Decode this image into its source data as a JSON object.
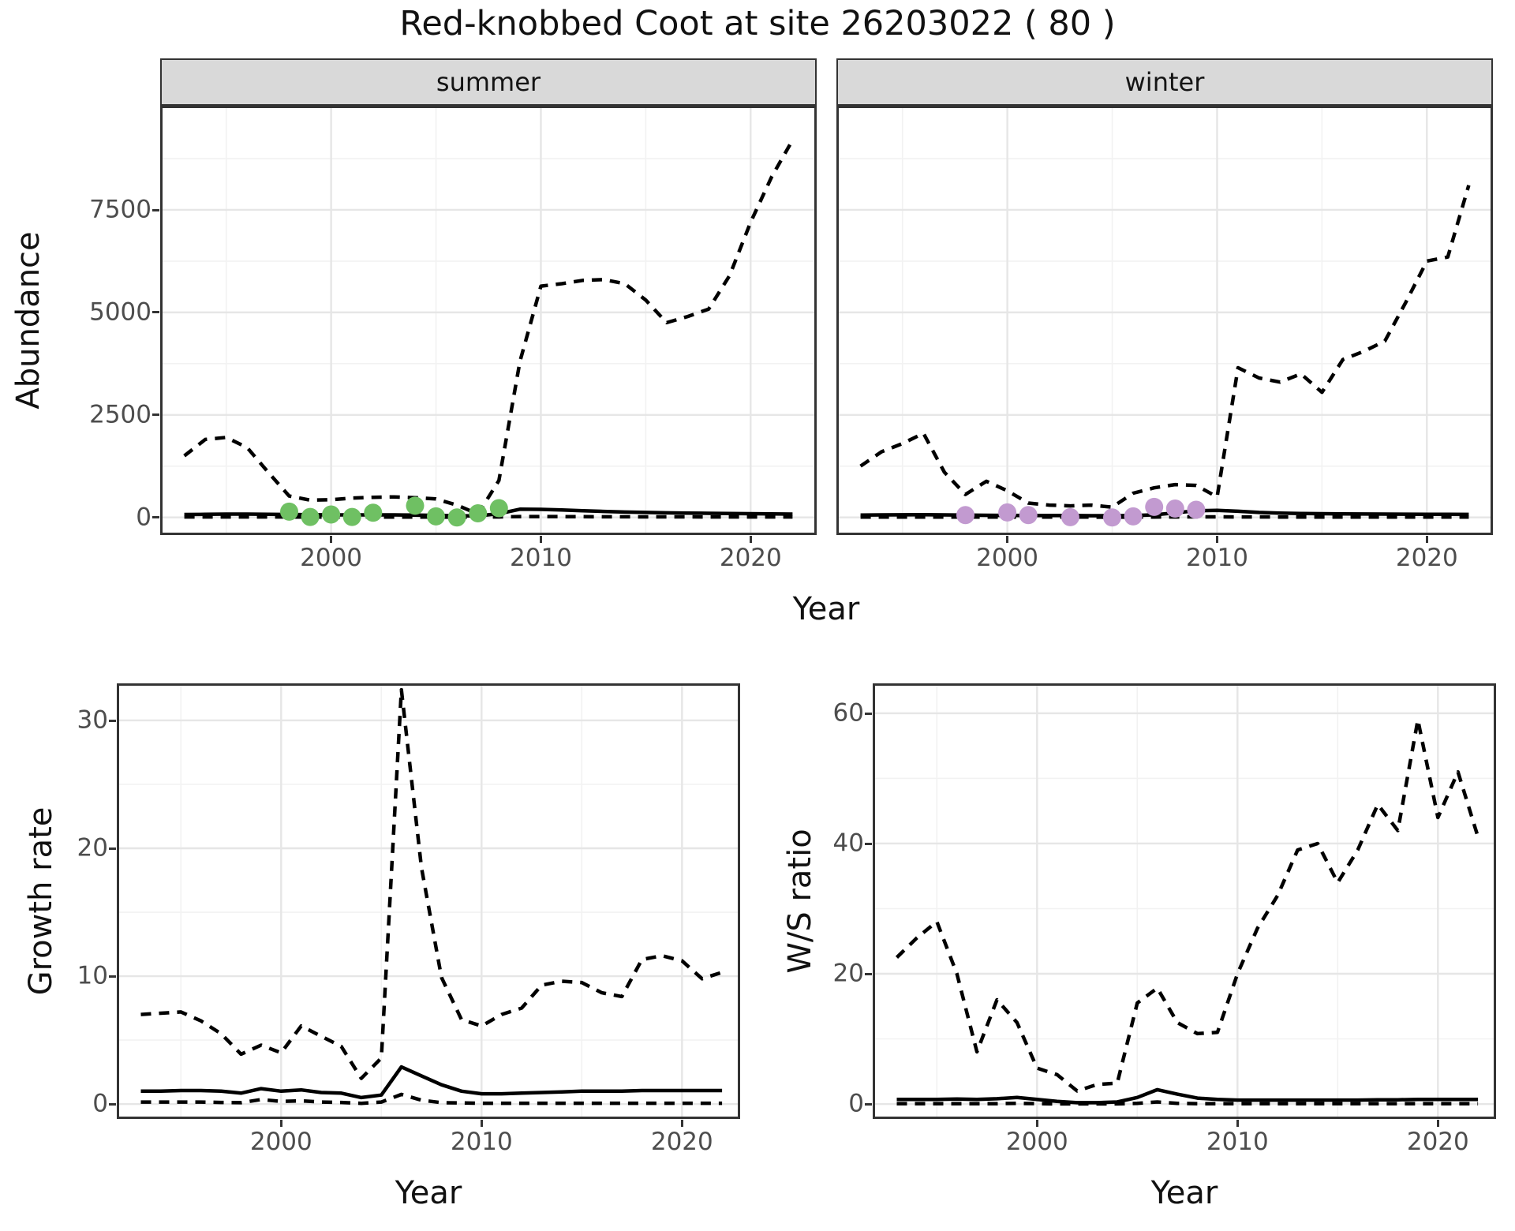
{
  "title": "Red-knobbed Coot at site 26203022 ( 80 )",
  "colors": {
    "summer_points": "#6fc063",
    "winter_points": "#c29ad0",
    "line": "#000000",
    "strip_bg": "#d9d9d9",
    "panel_border": "#333333",
    "grid_major": "#e6e6e6",
    "grid_minor": "#f2f2f2",
    "tick_text": "#4d4d4d"
  },
  "chart_data": [
    {
      "id": "abundance-summer",
      "type": "line",
      "facet": "summer",
      "xlabel": "Year",
      "ylabel": "Abundance",
      "x_range": [
        1991.85,
        2023.15
      ],
      "y_range": [
        -430,
        10040
      ],
      "xticks": [
        2000,
        2010,
        2020
      ],
      "yticks": [
        0,
        2500,
        5000,
        7500
      ],
      "xminor": [
        1995,
        2005,
        2015
      ],
      "yminor": [
        1250,
        3750,
        6250,
        8750
      ],
      "x": [
        1993,
        1994,
        1995,
        1996,
        1997,
        1998,
        1999,
        2000,
        2001,
        2002,
        2003,
        2004,
        2005,
        2006,
        2007,
        2008,
        2009,
        2010,
        2011,
        2012,
        2013,
        2014,
        2015,
        2016,
        2017,
        2018,
        2019,
        2020,
        2021,
        2022
      ],
      "series": [
        {
          "name": "estimate",
          "style": "solid",
          "values": [
            70,
            75,
            80,
            80,
            75,
            70,
            65,
            60,
            60,
            60,
            60,
            55,
            50,
            40,
            35,
            90,
            200,
            195,
            180,
            160,
            145,
            130,
            120,
            110,
            105,
            100,
            95,
            90,
            85,
            80
          ]
        },
        {
          "name": "upper-ci",
          "style": "dashed",
          "values": [
            1500,
            1900,
            1950,
            1700,
            1100,
            520,
            420,
            430,
            470,
            490,
            500,
            480,
            450,
            300,
            80,
            900,
            3800,
            5640,
            5700,
            5780,
            5800,
            5700,
            5300,
            4750,
            4900,
            5080,
            5900,
            7200,
            8300,
            9200
          ]
        },
        {
          "name": "lower-ci",
          "style": "dashed",
          "values": [
            10,
            10,
            10,
            10,
            10,
            8,
            8,
            8,
            8,
            8,
            8,
            8,
            6,
            5,
            5,
            10,
            20,
            20,
            18,
            16,
            15,
            14,
            13,
            12,
            12,
            11,
            11,
            10,
            10,
            10
          ]
        }
      ],
      "points": {
        "name": "summer-counts",
        "color_key": "summer_points",
        "data": [
          [
            1998,
            140
          ],
          [
            1999,
            10
          ],
          [
            2000,
            70
          ],
          [
            2001,
            10
          ],
          [
            2002,
            115
          ],
          [
            2004,
            285
          ],
          [
            2005,
            25
          ],
          [
            2006,
            0
          ],
          [
            2007,
            100
          ],
          [
            2008,
            225
          ]
        ]
      }
    },
    {
      "id": "abundance-winter",
      "type": "line",
      "facet": "winter",
      "xlabel": "Year",
      "ylabel": "Abundance",
      "x_range": [
        1991.85,
        2023.15
      ],
      "y_range": [
        -430,
        10040
      ],
      "xticks": [
        2000,
        2010,
        2020
      ],
      "yticks": [
        0,
        2500,
        5000,
        7500
      ],
      "xminor": [
        1995,
        2005,
        2015
      ],
      "yminor": [
        1250,
        3750,
        6250,
        8750
      ],
      "x": [
        1993,
        1994,
        1995,
        1996,
        1997,
        1998,
        1999,
        2000,
        2001,
        2002,
        2003,
        2004,
        2005,
        2006,
        2007,
        2008,
        2009,
        2010,
        2011,
        2012,
        2013,
        2014,
        2015,
        2016,
        2017,
        2018,
        2019,
        2020,
        2021,
        2022
      ],
      "series": [
        {
          "name": "estimate",
          "style": "solid",
          "values": [
            55,
            60,
            62,
            65,
            60,
            55,
            52,
            50,
            48,
            45,
            45,
            42,
            40,
            45,
            60,
            110,
            160,
            170,
            150,
            120,
            105,
            95,
            90,
            85,
            82,
            80,
            78,
            76,
            74,
            72
          ]
        },
        {
          "name": "upper-ci",
          "style": "dashed",
          "values": [
            1250,
            1600,
            1800,
            2050,
            1100,
            560,
            880,
            650,
            350,
            300,
            280,
            300,
            250,
            590,
            720,
            800,
            780,
            500,
            3650,
            3400,
            3300,
            3500,
            3050,
            3850,
            4050,
            4300,
            5250,
            6250,
            6350,
            8100
          ]
        },
        {
          "name": "lower-ci",
          "style": "dashed",
          "values": [
            8,
            8,
            8,
            8,
            8,
            7,
            7,
            7,
            6,
            6,
            6,
            6,
            5,
            6,
            8,
            10,
            12,
            12,
            11,
            10,
            9,
            9,
            8,
            8,
            8,
            8,
            8,
            8,
            8,
            8
          ]
        }
      ],
      "points": {
        "name": "winter-counts",
        "color_key": "winter_points",
        "data": [
          [
            1998,
            55
          ],
          [
            2000,
            120
          ],
          [
            2001,
            55
          ],
          [
            2003,
            5
          ],
          [
            2005,
            0
          ],
          [
            2006,
            25
          ],
          [
            2007,
            255
          ],
          [
            2008,
            215
          ],
          [
            2009,
            185
          ]
        ]
      }
    },
    {
      "id": "growth-rate",
      "type": "line",
      "facet": null,
      "xlabel": "Year",
      "ylabel": "Growth rate",
      "x_range": [
        1991.8,
        2022.9
      ],
      "y_range": [
        -1.17,
        32.9
      ],
      "xticks": [
        2000,
        2010,
        2020
      ],
      "yticks": [
        0,
        10,
        20,
        30
      ],
      "xminor": [
        1995,
        2005,
        2015
      ],
      "yminor": [
        5,
        15,
        25
      ],
      "x": [
        1993,
        1994,
        1995,
        1996,
        1997,
        1998,
        1999,
        2000,
        2001,
        2002,
        2003,
        2004,
        2005,
        2006,
        2007,
        2008,
        2009,
        2010,
        2011,
        2012,
        2013,
        2014,
        2015,
        2016,
        2017,
        2018,
        2019,
        2020,
        2021,
        2022
      ],
      "series": [
        {
          "name": "estimate",
          "style": "solid",
          "values": [
            1,
            1,
            1.05,
            1.05,
            1,
            0.85,
            1.2,
            1,
            1.1,
            0.9,
            0.85,
            0.5,
            0.7,
            2.9,
            2.2,
            1.5,
            1,
            0.8,
            0.8,
            0.85,
            0.9,
            0.95,
            1,
            1,
            1,
            1.05,
            1.05,
            1.05,
            1.05,
            1.05
          ]
        },
        {
          "name": "upper-ci",
          "style": "dashed",
          "values": [
            7,
            7.1,
            7.2,
            6.5,
            5.5,
            3.9,
            4.6,
            4,
            6.1,
            5.3,
            4.5,
            2,
            3.6,
            32.4,
            18.5,
            9.9,
            6.6,
            6.1,
            7,
            7.5,
            9.3,
            9.6,
            9.5,
            8.7,
            8.4,
            11.3,
            11.6,
            11.2,
            9.8,
            10.3
          ]
        },
        {
          "name": "lower-ci",
          "style": "dashed",
          "values": [
            0.15,
            0.15,
            0.15,
            0.15,
            0.12,
            0.1,
            0.35,
            0.2,
            0.25,
            0.15,
            0.12,
            0.05,
            0.15,
            0.75,
            0.3,
            0.1,
            0.08,
            0.06,
            0.06,
            0.06,
            0.06,
            0.06,
            0.06,
            0.06,
            0.06,
            0.06,
            0.06,
            0.06,
            0.06,
            0.06
          ]
        }
      ],
      "points": null
    },
    {
      "id": "ws-ratio",
      "type": "line",
      "facet": null,
      "xlabel": "Year",
      "ylabel": "W/S ratio",
      "x_range": [
        1991.8,
        2022.9
      ],
      "y_range": [
        -2.3,
        64.6
      ],
      "xticks": [
        2000,
        2010,
        2020
      ],
      "yticks": [
        0,
        20,
        40,
        60
      ],
      "xminor": [
        1995,
        2005,
        2015
      ],
      "yminor": [
        10,
        30,
        50
      ],
      "x": [
        1993,
        1994,
        1995,
        1996,
        1997,
        1998,
        1999,
        2000,
        2001,
        2002,
        2003,
        2004,
        2005,
        2006,
        2007,
        2008,
        2009,
        2010,
        2011,
        2012,
        2013,
        2014,
        2015,
        2016,
        2017,
        2018,
        2019,
        2020,
        2021,
        2022
      ],
      "series": [
        {
          "name": "estimate",
          "style": "solid",
          "values": [
            0.7,
            0.7,
            0.7,
            0.75,
            0.7,
            0.8,
            1,
            0.7,
            0.4,
            0.2,
            0.2,
            0.3,
            1,
            2.2,
            1.5,
            0.9,
            0.7,
            0.6,
            0.6,
            0.6,
            0.6,
            0.6,
            0.6,
            0.6,
            0.65,
            0.65,
            0.7,
            0.7,
            0.7,
            0.7
          ]
        },
        {
          "name": "upper-ci",
          "style": "dashed",
          "values": [
            22.5,
            25.5,
            28,
            20,
            8,
            16,
            12.5,
            5.5,
            4.5,
            2,
            3,
            3.2,
            15.5,
            17.8,
            12.5,
            10.8,
            11,
            20,
            27,
            32,
            39,
            40,
            34,
            39,
            46,
            42,
            59,
            44,
            51,
            41
          ]
        },
        {
          "name": "lower-ci",
          "style": "dashed",
          "values": [
            0.05,
            0.05,
            0.05,
            0.05,
            0.05,
            0.05,
            0.1,
            0.05,
            0.02,
            0.02,
            0.02,
            0.02,
            0.1,
            0.3,
            0.1,
            0.05,
            0.05,
            0.05,
            0.05,
            0.05,
            0.05,
            0.05,
            0.05,
            0.05,
            0.05,
            0.05,
            0.05,
            0.05,
            0.05,
            0.05
          ]
        }
      ],
      "points": null
    }
  ]
}
